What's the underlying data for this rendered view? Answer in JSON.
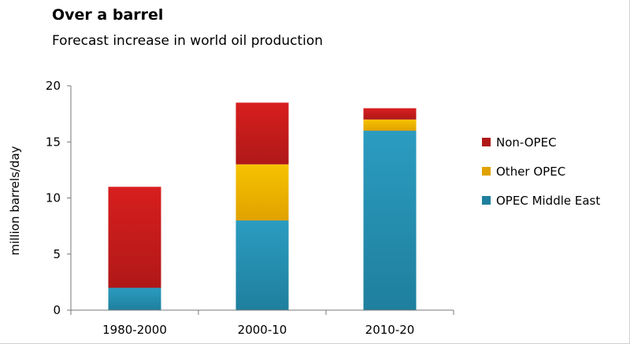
{
  "chart_data": {
    "type": "bar",
    "stacked": true,
    "title": "Over a barrel",
    "subtitle": "Forecast increase in world oil production",
    "xlabel": "",
    "ylabel": "million barrels/day",
    "ylim": [
      0,
      20
    ],
    "yticks": [
      0,
      5,
      10,
      15,
      20
    ],
    "categories": [
      "1980-2000",
      "2000-10",
      "2010-20"
    ],
    "series": [
      {
        "name": "OPEC Middle  East",
        "values": [
          2,
          8,
          16
        ],
        "color": "#2b9cc0",
        "color_dark": "#1f7f9e"
      },
      {
        "name": "Other OPEC",
        "values": [
          0,
          5,
          1
        ],
        "color": "#f6c200",
        "color_dark": "#e0a200"
      },
      {
        "name": "Non-OPEC",
        "values": [
          9,
          5.5,
          1
        ],
        "color": "#d81e1e",
        "color_dark": "#b01818"
      }
    ],
    "legend_order": [
      "Non-OPEC",
      "Other OPEC",
      "OPEC Middle  East"
    ],
    "legend_position": "right",
    "grid": false
  }
}
